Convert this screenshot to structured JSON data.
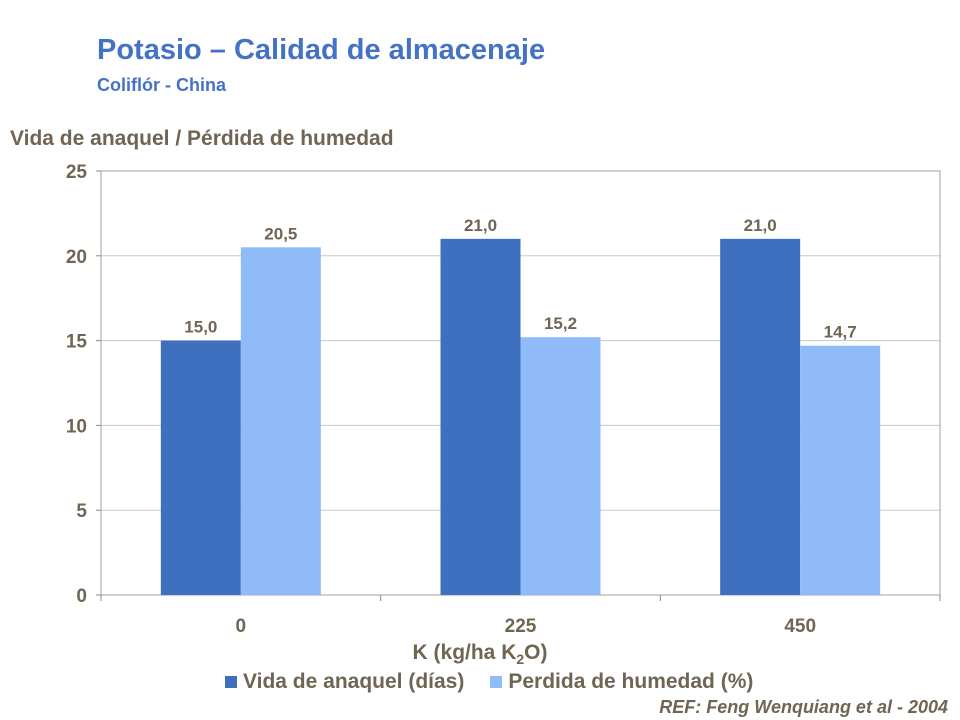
{
  "title": "Potasio – Calidad de almacenaje",
  "subtitle": "Coliflór - China",
  "reference": "REF: Feng Wenquiang et al - 2004",
  "chart_data": {
    "type": "bar",
    "ylabel": "Vida de anaquel / Pérdida de humedad",
    "xlabel_pre": "K  (kg/ha K",
    "xlabel_sub": "2",
    "xlabel_post": "O)",
    "categories": [
      "0",
      "225",
      "450"
    ],
    "series": [
      {
        "name": "Vida de anaquel (días)",
        "values": [
          15.0,
          21.0,
          21.0
        ],
        "labels": [
          "15,0",
          "21,0",
          "21,0"
        ],
        "color": "#3f6fbf"
      },
      {
        "name": "Perdida de humedad (%)",
        "values": [
          20.5,
          15.2,
          14.7
        ],
        "labels": [
          "20,5",
          "15,2",
          "14,7"
        ],
        "color": "#8fbbf9"
      }
    ],
    "ylim": [
      0,
      25
    ],
    "yticks": [
      0,
      5,
      10,
      15,
      20,
      25
    ],
    "grid": true,
    "legend": "bottom"
  }
}
